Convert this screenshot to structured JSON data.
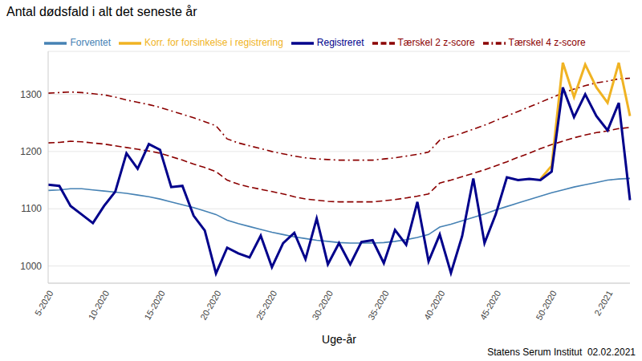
{
  "chart_data": {
    "type": "line",
    "title": "Antal dødsfald i alt det seneste år",
    "x_label": "Uge-år",
    "annotation": "Statens Serum Institut  02.02.2021",
    "categories": [
      "5-2020",
      null,
      null,
      null,
      null,
      "10-2020",
      null,
      null,
      null,
      null,
      "15-2020",
      null,
      null,
      null,
      null,
      "20-2020",
      null,
      null,
      null,
      null,
      "25-2020",
      null,
      null,
      null,
      null,
      "30-2020",
      null,
      null,
      null,
      null,
      "35-2020",
      null,
      null,
      null,
      null,
      "40-2020",
      null,
      null,
      null,
      null,
      "45-2020",
      null,
      null,
      null,
      null,
      "50-2020",
      null,
      null,
      null,
      null,
      "2-2021",
      null,
      null
    ],
    "ylim": [
      970,
      1375
    ],
    "yticks": [
      1000,
      1100,
      1200,
      1300
    ],
    "grid": true,
    "legend": "top",
    "series": [
      {
        "name": "Tærskel 4 z-score",
        "color": "#8B0000",
        "line_style": "dashdot",
        "values": [
          1302,
          1303,
          1304,
          1303,
          1301,
          1299,
          1295,
          1290,
          1286,
          1282,
          1277,
          1271,
          1265,
          1259,
          1252,
          1245,
          1222,
          1215,
          1210,
          1205,
          1200,
          1196,
          1192,
          1189,
          1187,
          1186,
          1185,
          1185,
          1185,
          1185,
          1187,
          1189,
          1192,
          1195,
          1199,
          1220,
          1226,
          1232,
          1239,
          1246,
          1254,
          1262,
          1270,
          1278,
          1286,
          1294,
          1302,
          1309,
          1315,
          1320,
          1323,
          1327,
          1328
        ]
      },
      {
        "name": "Tærskel 2 z-score",
        "color": "#8B0000",
        "line_style": "dashed",
        "values": [
          1215,
          1216,
          1218,
          1217,
          1215,
          1213,
          1210,
          1207,
          1204,
          1201,
          1197,
          1191,
          1185,
          1178,
          1172,
          1165,
          1150,
          1143,
          1138,
          1134,
          1130,
          1126,
          1121,
          1117,
          1115,
          1113,
          1112,
          1112,
          1112,
          1112,
          1114,
          1116,
          1119,
          1122,
          1126,
          1145,
          1150,
          1156,
          1162,
          1168,
          1175,
          1182,
          1190,
          1197,
          1205,
          1212,
          1218,
          1224,
          1229,
          1233,
          1236,
          1240,
          1242
        ]
      },
      {
        "name": "Forventet",
        "color": "#4682B4",
        "line_style": "solid",
        "values": [
          1132,
          1133,
          1135,
          1135,
          1133,
          1131,
          1129,
          1127,
          1124,
          1121,
          1117,
          1112,
          1107,
          1102,
          1096,
          1090,
          1080,
          1074,
          1069,
          1064,
          1059,
          1055,
          1051,
          1048,
          1045,
          1043,
          1041,
          1040,
          1040,
          1040,
          1041,
          1043,
          1046,
          1050,
          1055,
          1068,
          1073,
          1079,
          1085,
          1091,
          1098,
          1104,
          1110,
          1116,
          1122,
          1128,
          1133,
          1138,
          1142,
          1146,
          1150,
          1152,
          1153
        ]
      },
      {
        "name": "Korr. for forsinkelse i registrering",
        "color": "#F0B323",
        "line_style": "solid",
        "values": [
          null,
          null,
          null,
          null,
          null,
          null,
          null,
          null,
          null,
          null,
          null,
          null,
          null,
          null,
          null,
          null,
          null,
          null,
          null,
          null,
          null,
          null,
          null,
          null,
          null,
          null,
          null,
          null,
          null,
          null,
          null,
          null,
          null,
          null,
          null,
          null,
          null,
          null,
          null,
          null,
          null,
          null,
          null,
          null,
          1152,
          1175,
          1355,
          1295,
          1352,
          1312,
          1285,
          1355,
          1262
        ]
      },
      {
        "name": "Registreret",
        "color": "#00008B",
        "line_style": "solid",
        "values": [
          1142,
          1140,
          1105,
          1090,
          1075,
          1105,
          1130,
          1197,
          1170,
          1213,
          1203,
          1138,
          1140,
          1088,
          1062,
          987,
          1032,
          1022,
          1015,
          1053,
          998,
          1040,
          1058,
          1012,
          1083,
          1003,
          1040,
          1003,
          1042,
          1045,
          1005,
          1063,
          1037,
          1112,
          1008,
          1055,
          988,
          1052,
          1153,
          1040,
          1090,
          1155,
          1150,
          1152,
          1150,
          1165,
          1312,
          1260,
          1300,
          1262,
          1237,
          1285,
          1115
        ]
      }
    ]
  }
}
